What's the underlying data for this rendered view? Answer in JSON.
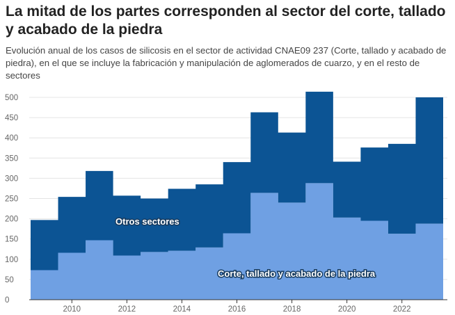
{
  "header": {
    "title": "La mitad de los partes corresponden al sector del corte, tallado y acabado de la piedra",
    "subtitle": "Evolución anual de los casos de silicosis en el sector de actividad CNAE09 237 (Corte, tallado y acabado de piedra), en el que se incluye la fabricación y manipulación de aglomerados de cuarzo, y en el resto de sectores"
  },
  "chart_data": {
    "type": "area",
    "stacked": true,
    "step": true,
    "x": [
      2009,
      2010,
      2011,
      2012,
      2013,
      2014,
      2015,
      2016,
      2017,
      2018,
      2019,
      2020,
      2021,
      2022,
      2023
    ],
    "series": [
      {
        "name": "Corte, tallado y acabado de la piedra",
        "color": "#6fa0e3",
        "values": [
          73,
          116,
          147,
          109,
          118,
          121,
          129,
          164,
          264,
          240,
          288,
          203,
          195,
          163,
          188
        ]
      },
      {
        "name": "Otros sectores",
        "color": "#0c5494",
        "values": [
          124,
          138,
          171,
          148,
          132,
          153,
          156,
          176,
          199,
          173,
          226,
          138,
          181,
          222,
          312
        ]
      }
    ],
    "yticks": [
      0,
      50,
      100,
      150,
      200,
      250,
      300,
      350,
      400,
      450,
      500
    ],
    "ylim": [
      0,
      500
    ],
    "xticks": [
      "2010",
      "2012",
      "2014",
      "2016",
      "2018",
      "2020",
      "2022"
    ],
    "grid": true,
    "legend": "inline labels"
  }
}
